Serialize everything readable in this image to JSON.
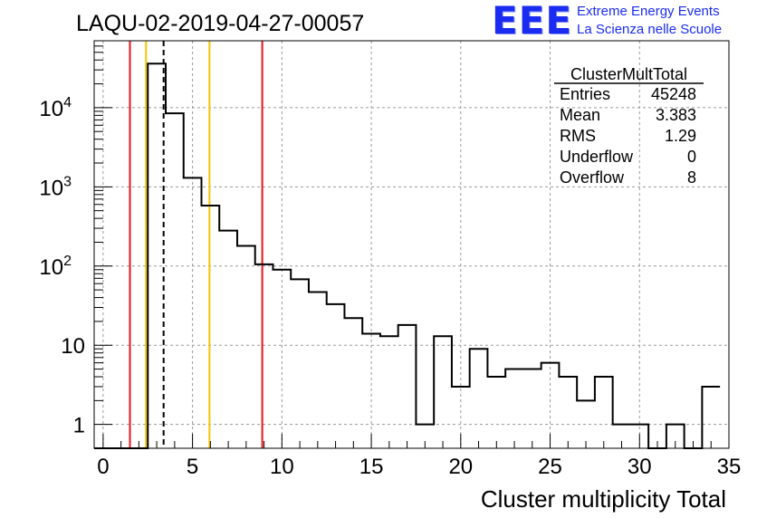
{
  "logo": {
    "mark": "EEE",
    "line1": "Extreme Energy Events",
    "line2": "La Scienza nelle Scuole",
    "color": "#1a2cf0"
  },
  "chart_data": {
    "type": "histogram",
    "title": "LAQU-02-2019-04-27-00057",
    "xlabel": "Cluster multiplicity Total",
    "ylabel": "",
    "xlim": [
      -0.5,
      35.0
    ],
    "ylim": [
      0.5,
      70000
    ],
    "yscale": "log",
    "grid": true,
    "bin_width": 1,
    "bin_edges_start": -0.5,
    "x_ticks": [
      0,
      5,
      10,
      15,
      20,
      25,
      30,
      35
    ],
    "y_ticks": [
      {
        "value": 1,
        "label": "1"
      },
      {
        "value": 10,
        "label": "10"
      },
      {
        "value": 100,
        "label": "10",
        "exp": "2"
      },
      {
        "value": 1000,
        "label": "10",
        "exp": "3"
      },
      {
        "value": 10000,
        "label": "10",
        "exp": "4"
      }
    ],
    "counts": [
      0,
      0,
      0,
      36000,
      8500,
      1300,
      580,
      280,
      180,
      105,
      90,
      68,
      47,
      33,
      22,
      14,
      13,
      18,
      1,
      13,
      3,
      9,
      4,
      5,
      5,
      6,
      4,
      2,
      4,
      1,
      1,
      0,
      1,
      0,
      3
    ],
    "vertical_lines": [
      {
        "x": 1.5,
        "color": "#e8151b",
        "style": "solid"
      },
      {
        "x": 2.4,
        "color": "#f5c400",
        "style": "solid"
      },
      {
        "x": 3.383,
        "color": "#000000",
        "style": "dashed"
      },
      {
        "x": 5.95,
        "color": "#f5c400",
        "style": "solid"
      },
      {
        "x": 8.9,
        "color": "#e8151b",
        "style": "solid"
      }
    ],
    "stats": {
      "name": "ClusterMultTotal",
      "rows": [
        {
          "label": "Entries",
          "value": "45248"
        },
        {
          "label": "Mean",
          "value": "3.383"
        },
        {
          "label": "RMS",
          "value": "1.29"
        },
        {
          "label": "Underflow",
          "value": "0"
        },
        {
          "label": "Overflow",
          "value": "8"
        }
      ]
    }
  }
}
